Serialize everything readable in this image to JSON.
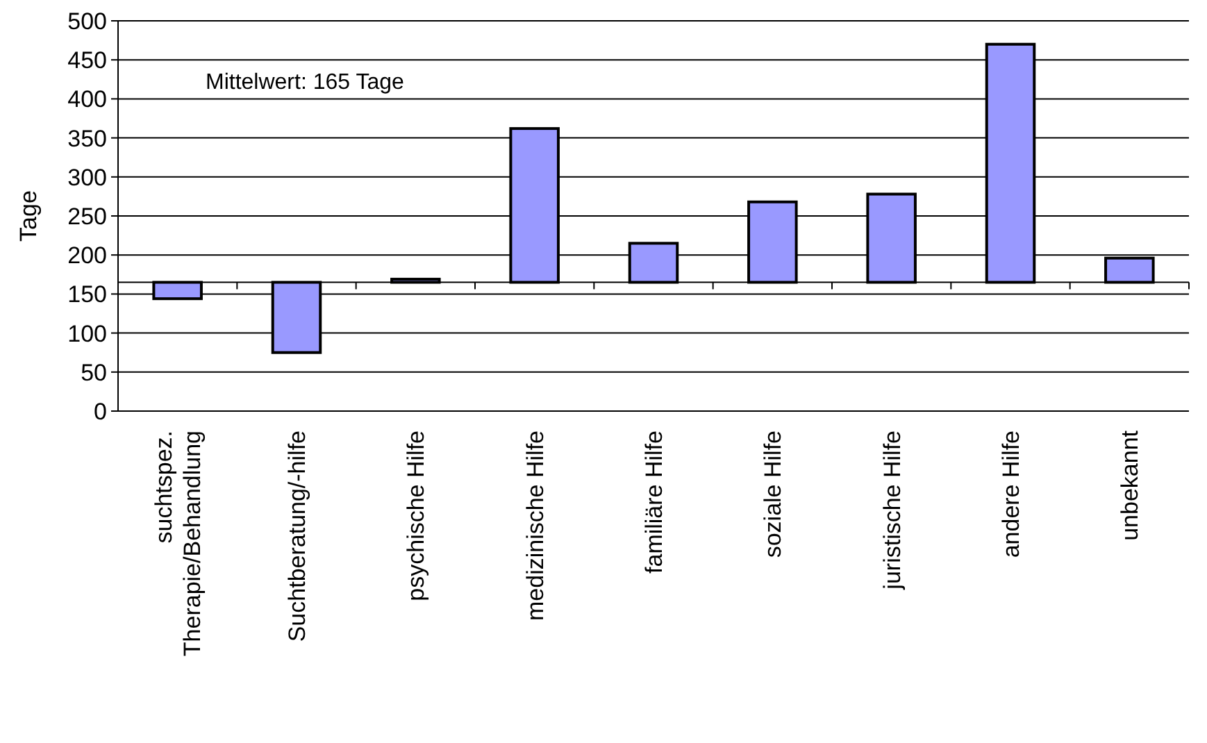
{
  "chart_data": {
    "type": "bar",
    "ylabel": "Tage",
    "annotations": [
      "Mittelwert: 165 Tage"
    ],
    "categories": [
      "suchtspez. Therapie/Behandlung",
      "Suchtberatung/-hilfe",
      "psychische Hilfe",
      "medizinische Hilfe",
      "familiäre Hilfe",
      "soziale Hilfe",
      "juristische Hilfe",
      "andere Hilfe",
      "unbekannt"
    ],
    "base": [
      165,
      165,
      165,
      165,
      165,
      165,
      165,
      165,
      165
    ],
    "values": [
      -21,
      -90,
      4,
      197,
      50,
      103,
      113,
      305,
      31
    ],
    "color": "#9999ff",
    "ylim": [
      0,
      500
    ],
    "yticks": [
      0,
      50,
      100,
      150,
      200,
      250,
      300,
      350,
      400,
      450,
      500
    ],
    "grid": "y"
  }
}
